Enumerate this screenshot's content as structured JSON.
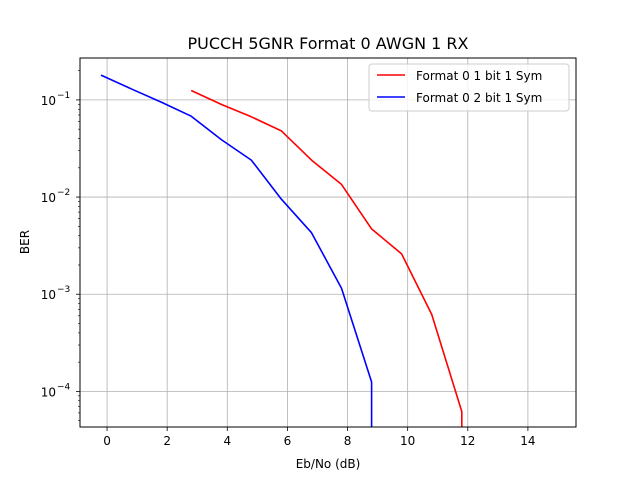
{
  "chart_data": {
    "type": "line",
    "title": "PUCCH 5GNR Format 0 AWGN 1 RX",
    "xlabel": "Eb/No (dB)",
    "ylabel": "BER",
    "xlim": [
      -0.9,
      15.6
    ],
    "ylim": [
      4.3e-05,
      0.27
    ],
    "y_scale": "log",
    "grid": true,
    "legend_position": "top-right",
    "x_ticks": [
      0,
      2,
      4,
      6,
      8,
      10,
      12,
      14
    ],
    "x_tick_labels": [
      "0",
      "2",
      "4",
      "6",
      "8",
      "10",
      "12",
      "14"
    ],
    "y_ticks": [
      0.0001,
      0.001,
      0.01,
      0.1
    ],
    "y_tick_labels": [
      {
        "base": "10",
        "exp": "−4"
      },
      {
        "base": "10",
        "exp": "−3"
      },
      {
        "base": "10",
        "exp": "−2"
      },
      {
        "base": "10",
        "exp": "−1"
      }
    ],
    "series": [
      {
        "name": "Format 0 1 bit 1 Sym",
        "color": "#ff0000",
        "x": [
          2.8,
          3.8,
          4.8,
          5.8,
          6.8,
          7.8,
          8.8,
          9.8,
          10.8,
          11.8,
          11.8
        ],
        "y": [
          0.125,
          0.09,
          0.067,
          0.048,
          0.024,
          0.0135,
          0.0047,
          0.0026,
          0.00062,
          6.2e-05,
          4.3e-05
        ]
      },
      {
        "name": "Format 0 2 bit 1 Sym",
        "color": "#0000ff",
        "x": [
          -0.2,
          0.8,
          1.8,
          2.8,
          3.8,
          4.8,
          5.8,
          6.8,
          7.8,
          8.8,
          8.8
        ],
        "y": [
          0.18,
          0.13,
          0.095,
          0.068,
          0.039,
          0.024,
          0.0095,
          0.0043,
          0.00115,
          0.000125,
          4.3e-05
        ]
      }
    ]
  }
}
